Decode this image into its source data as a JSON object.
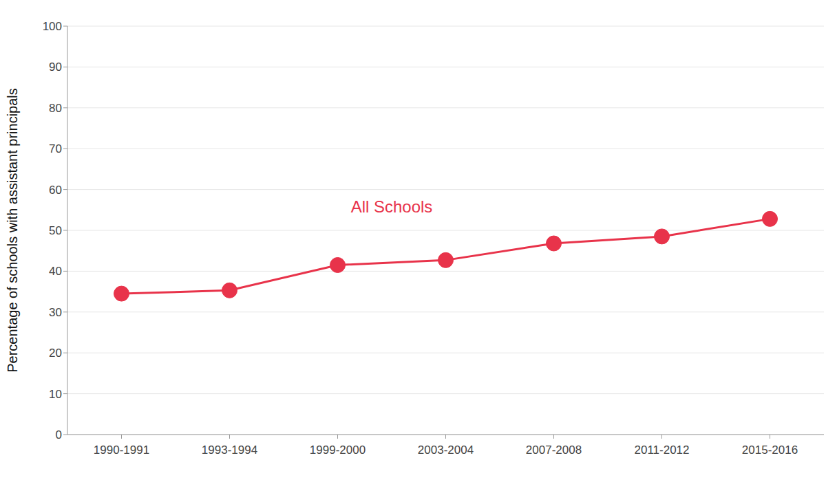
{
  "chart_data": {
    "type": "line",
    "y_label": "Percentage of schools with assistant principals",
    "categories": [
      "1990-1991",
      "1993-1994",
      "1999-2000",
      "2003-2004",
      "2007-2008",
      "2011-2012",
      "2015-2016"
    ],
    "series": [
      {
        "name": "All Schools",
        "color": "#e8334a",
        "marker": "circle",
        "values": [
          34.5,
          35.3,
          41.5,
          42.7,
          46.8,
          48.5,
          52.8
        ]
      }
    ],
    "ylim": [
      0,
      100
    ],
    "yticks": [
      0,
      10,
      20,
      30,
      40,
      50,
      60,
      70,
      80,
      90,
      100
    ],
    "grid": true
  }
}
